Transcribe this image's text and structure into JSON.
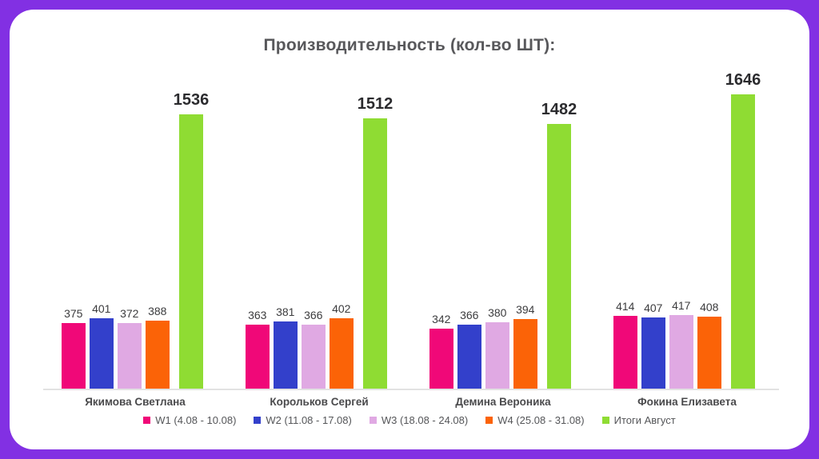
{
  "theme": {
    "frame_color": "#8230E3",
    "card_color": "#FFFFFF",
    "axis_color": "#E2E2E2",
    "title_color": "#58585B"
  },
  "chart_data": {
    "type": "bar",
    "title": "Производительность (кол-во ШТ):",
    "xlabel": "",
    "ylabel": "",
    "grid": false,
    "legend_position": "bottom",
    "ylim": [
      0,
      1646
    ],
    "categories": [
      "Якимова Светлана",
      "Корольков Сергей",
      "Демина Вероника",
      "Фокина Елизавета"
    ],
    "series": [
      {
        "name": "W1 (4.08 - 10.08)",
        "color": "#F00878",
        "emphasis": false,
        "values": [
          375,
          363,
          342,
          414
        ]
      },
      {
        "name": "W2 (11.08 - 17.08)",
        "color": "#3340CB",
        "emphasis": false,
        "values": [
          401,
          381,
          366,
          407
        ]
      },
      {
        "name": "W3 (18.08 - 24.08)",
        "color": "#E0A9E3",
        "emphasis": false,
        "values": [
          372,
          366,
          380,
          417
        ]
      },
      {
        "name": "W4 (25.08 - 31.08)",
        "color": "#FB6307",
        "emphasis": false,
        "values": [
          388,
          402,
          394,
          408
        ]
      },
      {
        "name": "Итоги Август",
        "color": "#8FDC33",
        "emphasis": true,
        "values": [
          1536,
          1512,
          1482,
          1646
        ]
      }
    ]
  }
}
